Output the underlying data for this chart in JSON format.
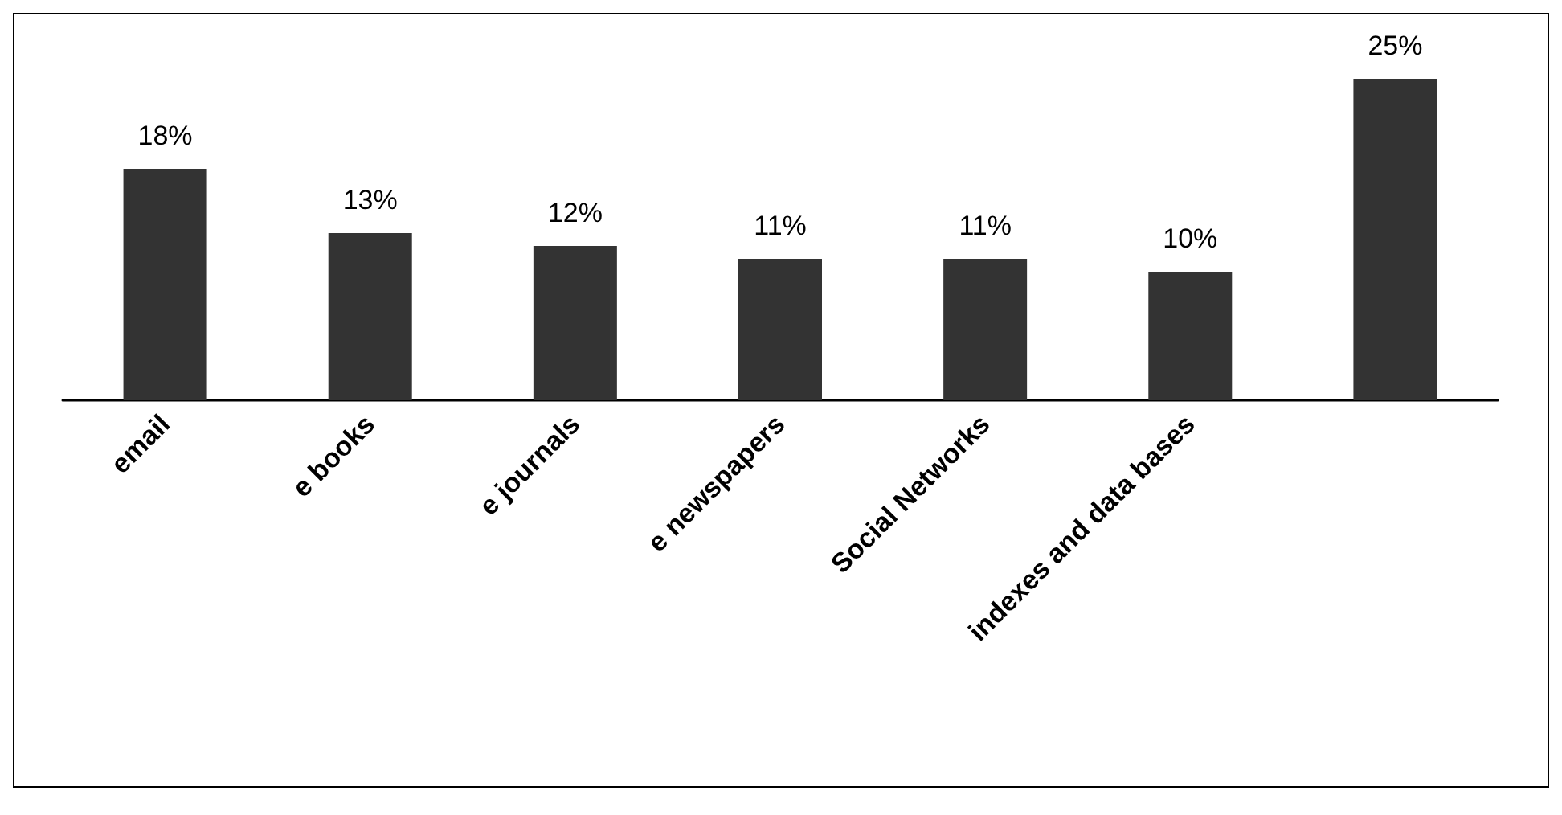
{
  "chart_data": {
    "type": "bar",
    "categories": [
      "email",
      "e books",
      "e journals",
      "e newspapers",
      "Social Networks",
      "indexes and data bases",
      null
    ],
    "values": [
      18,
      13,
      12,
      11,
      11,
      10,
      25
    ],
    "value_labels": [
      "18%",
      "13%",
      "12%",
      "11%",
      "11%",
      "10%",
      "25%"
    ],
    "color": "#333333",
    "grid": false
  }
}
